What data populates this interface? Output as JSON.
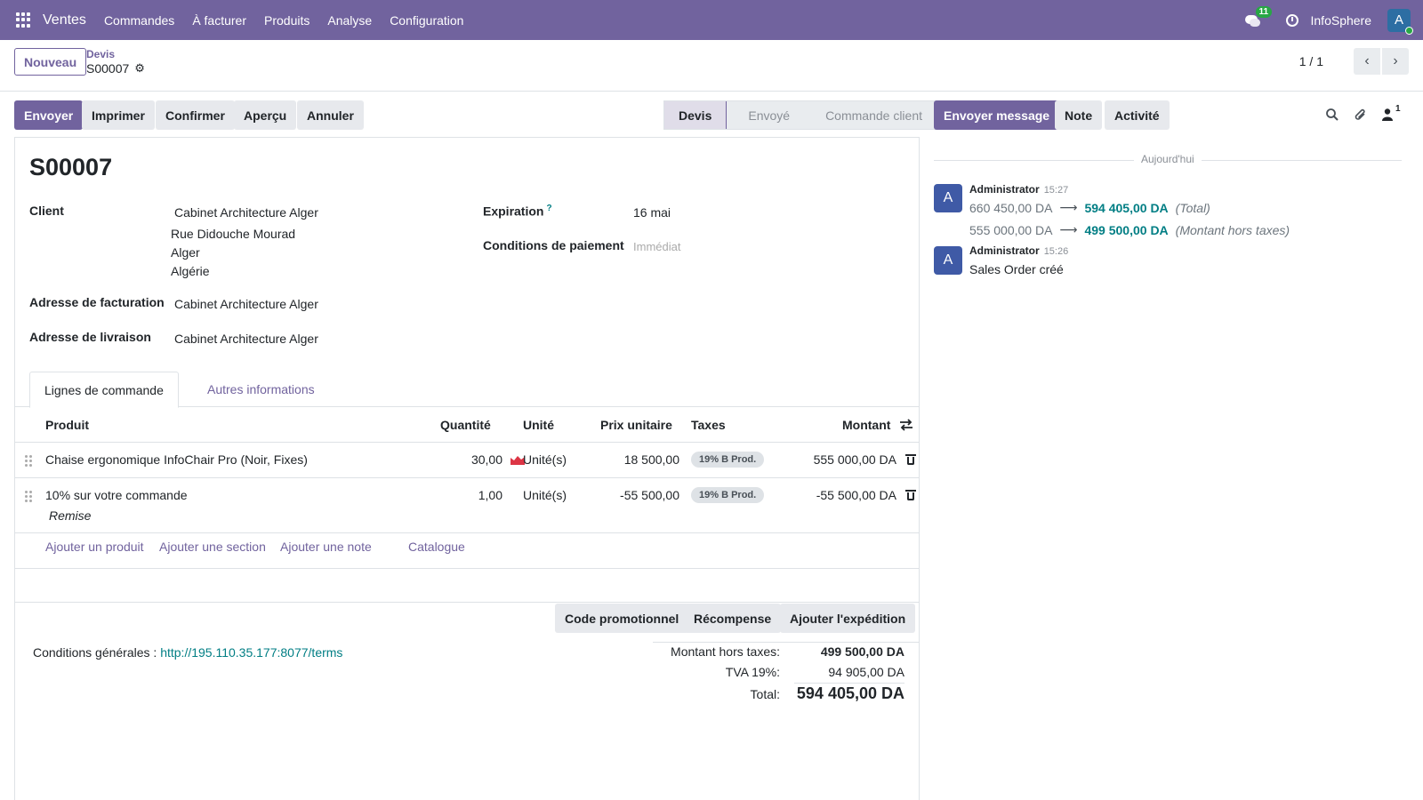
{
  "navbar": {
    "app": "Ventes",
    "menu": [
      "Commandes",
      "À facturer",
      "Produits",
      "Analyse",
      "Configuration"
    ],
    "chat_count": "11",
    "company": "InfoSphere",
    "avatar_letter": "A"
  },
  "control": {
    "new_label": "Nouveau",
    "breadcrumb_parent": "Devis",
    "breadcrumb_current": "S00007",
    "pager": "1 / 1"
  },
  "actions": [
    "Envoyer",
    "Imprimer",
    "Confirmer",
    "Aperçu",
    "Annuler"
  ],
  "status": [
    "Devis",
    "Envoyé",
    "Commande client"
  ],
  "form": {
    "title": "S00007",
    "client_label": "Client",
    "client_name": "Cabinet Architecture Alger",
    "client_addr": [
      "Rue Didouche Mourad",
      "Alger",
      "Algérie"
    ],
    "invoice_label": "Adresse de facturation",
    "invoice_value": "Cabinet Architecture Alger",
    "delivery_label": "Adresse de livraison",
    "delivery_value": "Cabinet Architecture Alger",
    "expiration_label": "Expiration",
    "expiration_help": "?",
    "expiration_value": "16 mai",
    "payment_label": "Conditions de paiement",
    "payment_placeholder": "Immédiat"
  },
  "tabs": [
    "Lignes de commande",
    "Autres informations"
  ],
  "table": {
    "headers": {
      "product": "Produit",
      "qty": "Quantité",
      "uom": "Unité",
      "price": "Prix unitaire",
      "taxes": "Taxes",
      "amount": "Montant"
    },
    "rows": [
      {
        "product": "Chaise ergonomique InfoChair Pro (Noir, Fixes)",
        "qty": "30,00",
        "uom": "Unité(s)",
        "price": "18 500,00",
        "tax": "19% B Prod.",
        "amount": "555 000,00 DA"
      },
      {
        "product": "10% sur votre commande",
        "sub": "Remise",
        "qty": "1,00",
        "uom": "Unité(s)",
        "price": "-55 500,00",
        "tax": "19% B Prod.",
        "amount": "-55 500,00 DA"
      }
    ],
    "add_links": [
      "Ajouter un produit",
      "Ajouter une section",
      "Ajouter une note",
      "Catalogue"
    ]
  },
  "footer": {
    "buttons": [
      "Code promotionnel",
      "Récompense",
      "Ajouter l'expédition"
    ],
    "terms_label": "Conditions générales :",
    "terms_link": "http://195.110.35.177:8077/terms",
    "untaxed_label": "Montant hors taxes:",
    "untaxed_value": "499 500,00 DA",
    "tva_label": "TVA 19%:",
    "tva_value": "94 905,00 DA",
    "total_label": "Total:",
    "total_value": "594 405,00 DA"
  },
  "chatter": {
    "buttons": [
      "Envoyer message",
      "Note",
      "Activité"
    ],
    "followers_count": "1",
    "day": "Aujourd'hui",
    "messages": [
      {
        "avatar": "A",
        "author": "Administrator",
        "time": "15:27",
        "tracking": [
          {
            "old": "660 450,00 DA",
            "new": "594 405,00 DA",
            "field": "(Total)"
          },
          {
            "old": "555 000,00 DA",
            "new": "499 500,00 DA",
            "field": "(Montant hors taxes)"
          }
        ]
      },
      {
        "avatar": "A",
        "author": "Administrator",
        "time": "15:26",
        "body": "Sales Order créé"
      }
    ]
  },
  "colors": {
    "brand": "#71639e",
    "link": "#017e84",
    "badge": "#28a745",
    "chart_icon": "#dc3545"
  }
}
